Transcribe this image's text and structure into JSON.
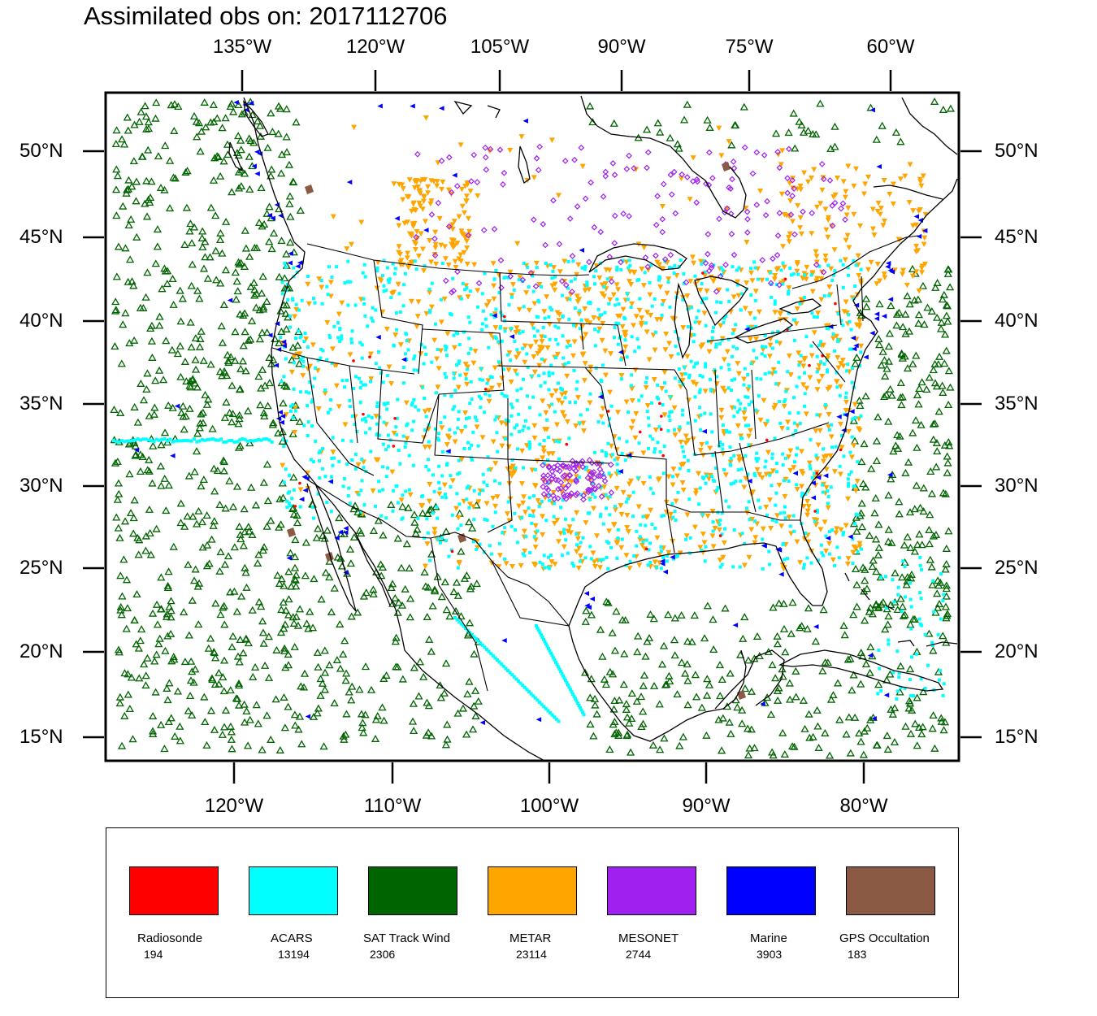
{
  "title": "Assimilated obs on: 2017112706",
  "top_lon_labels": [
    "135°W",
    "120°W",
    "105°W",
    "90°W",
    "75°W",
    "60°W"
  ],
  "bottom_lon_labels": [
    "120°W",
    "110°W",
    "100°W",
    "90°W",
    "80°W"
  ],
  "lat_labels": [
    "50°N",
    "45°N",
    "40°N",
    "35°N",
    "30°N",
    "25°N",
    "20°N",
    "15°N"
  ],
  "legend": [
    {
      "name": "Radiosonde",
      "count": "194",
      "color": "#ff0000"
    },
    {
      "name": "ACARS",
      "count": "13194",
      "color": "#00ffff"
    },
    {
      "name": "SAT Track Wind",
      "count": "2306",
      "color": "#006400"
    },
    {
      "name": "METAR",
      "count": "23114",
      "color": "#ffa500"
    },
    {
      "name": "MESONET",
      "count": "2744",
      "color": "#a020f0"
    },
    {
      "name": "Marine",
      "count": "3903",
      "color": "#0000ff"
    },
    {
      "name": "GPS Occultation",
      "count": "183",
      "color": "#8b5a44"
    }
  ]
}
